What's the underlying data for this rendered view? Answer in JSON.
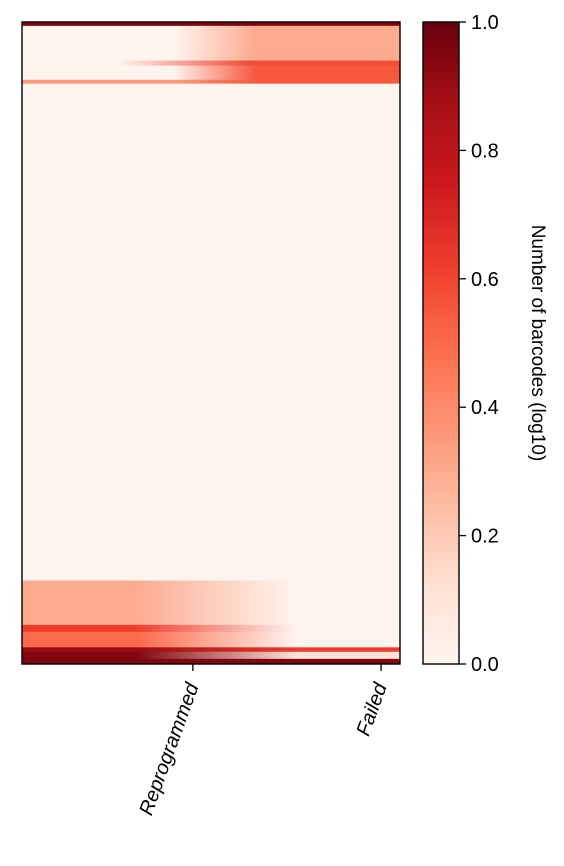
{
  "chart_data": {
    "type": "heatmap",
    "title": "",
    "xlabel": "",
    "ylabel": "",
    "categories": [
      "Reprogrammed",
      "Failed"
    ],
    "colormap": {
      "name": "Reds",
      "stops": [
        "#fff5f0",
        "#fee0d2",
        "#fcbba1",
        "#fc9272",
        "#fb6a4a",
        "#ef3b2c",
        "#cb181d",
        "#a50f15",
        "#67000d"
      ]
    },
    "colorbar": {
      "label": "Number of barcodes (log10)",
      "range": [
        0,
        1
      ],
      "ticks": [
        "0.0",
        "0.2",
        "0.4",
        "0.6",
        "0.8",
        "1.0"
      ]
    },
    "bands": [
      {
        "from": 0.0,
        "to": 0.006,
        "left": 0.95,
        "right": 0.95,
        "fade": [
          0.35,
          0.5
        ]
      },
      {
        "from": 0.006,
        "to": 0.06,
        "left": 0.0,
        "right": 0.3,
        "fade": [
          0.4,
          0.62
        ]
      },
      {
        "from": 0.06,
        "to": 0.068,
        "left": 0.0,
        "right": 0.58,
        "fade": [
          0.25,
          0.6
        ]
      },
      {
        "from": 0.068,
        "to": 0.09,
        "left": 0.0,
        "right": 0.55,
        "fade": [
          0.4,
          0.62
        ]
      },
      {
        "from": 0.09,
        "to": 0.096,
        "left": 0.35,
        "right": 0.55,
        "fade": [
          0.4,
          0.62
        ]
      },
      {
        "from": 0.096,
        "to": 0.87,
        "left": 0.0,
        "right": 0.0,
        "fade": [
          0.4,
          0.62
        ]
      },
      {
        "from": 0.87,
        "to": 0.939,
        "left": 0.3,
        "right": 0.0,
        "fade": [
          0.3,
          0.73
        ]
      },
      {
        "from": 0.939,
        "to": 0.95,
        "left": 0.62,
        "right": 0.0,
        "fade": [
          0.3,
          0.73
        ]
      },
      {
        "from": 0.95,
        "to": 0.974,
        "left": 0.5,
        "right": 0.0,
        "fade": [
          0.3,
          0.73
        ]
      },
      {
        "from": 0.974,
        "to": 0.981,
        "left": 0.9,
        "right": 0.62,
        "fade": [
          0.3,
          0.73
        ]
      },
      {
        "from": 0.981,
        "to": 0.992,
        "left": 0.95,
        "right": 0.1,
        "fade": [
          0.3,
          0.73
        ]
      },
      {
        "from": 0.992,
        "to": 1.0,
        "left": 0.95,
        "right": 0.95,
        "fade": [
          0.3,
          0.73
        ]
      }
    ]
  }
}
